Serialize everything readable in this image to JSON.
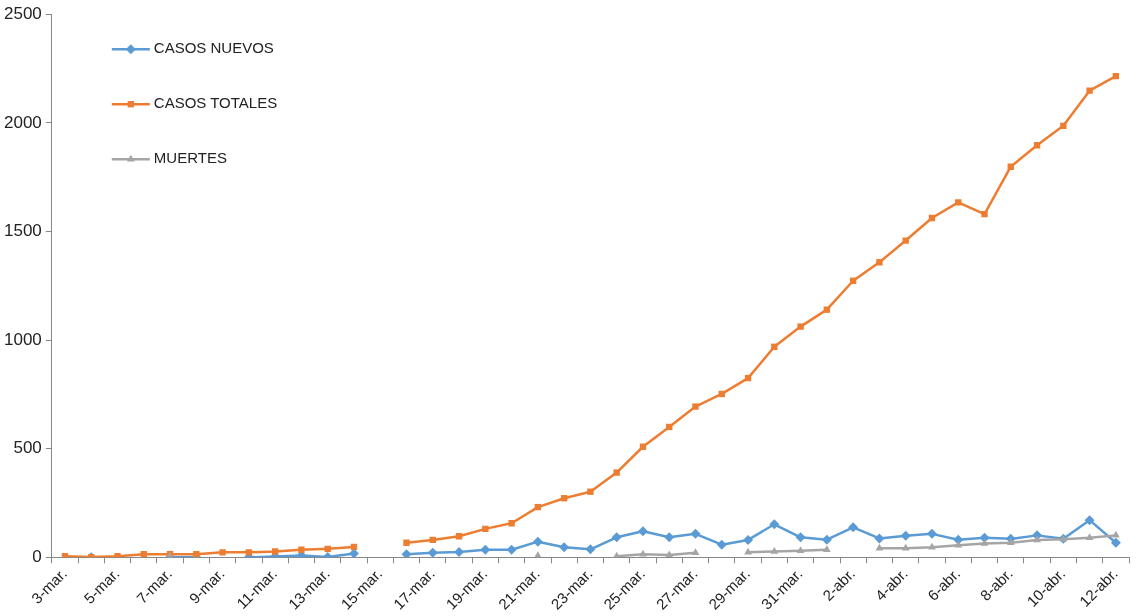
{
  "chart_data": {
    "type": "line",
    "categories": [
      "3-mar.",
      null,
      "5-mar.",
      null,
      "7-mar.",
      null,
      "9-mar.",
      null,
      "11-mar.",
      null,
      "13-mar.",
      null,
      "15-mar.",
      null,
      "17-mar.",
      null,
      "19-mar.",
      null,
      "21-mar.",
      null,
      "23-mar.",
      null,
      "25-mar.",
      null,
      "27-mar.",
      null,
      "29-mar.",
      null,
      "31-mar.",
      null,
      "2-abr.",
      null,
      "4-abr.",
      null,
      "6-abr.",
      null,
      "8-abr.",
      null,
      "10-abr.",
      null,
      "12-abr."
    ],
    "series": [
      {
        "name": "CASOS NUEVOS",
        "color": "#5b9bd5",
        "marker": "diamond",
        "values": [
          null,
          0,
          null,
          null,
          0,
          0,
          null,
          0,
          4,
          8,
          1,
          18,
          null,
          14,
          21,
          25,
          35,
          35,
          72,
          46,
          37,
          92,
          120,
          92,
          108,
          58,
          80,
          152,
          92,
          81,
          138,
          87,
          99,
          108,
          81,
          90,
          85,
          101,
          85,
          171,
          67
        ]
      },
      {
        "name": "CASOS TOTALES",
        "color": "#ed7d31",
        "marker": "square",
        "values": [
          5,
          1,
          5,
          14,
          14,
          14,
          23,
          23,
          27,
          35,
          39,
          48,
          null,
          67,
          80,
          97,
          131,
          157,
          231,
          272,
          302,
          390,
          509,
          600,
          694,
          752,
          825,
          969,
          1062,
          1140,
          1273,
          1358,
          1458,
          1562,
          1634,
          1580,
          1798,
          1897,
          1986,
          2148,
          2215
        ]
      },
      {
        "name": "MUERTES",
        "color": "#a5a5a5",
        "marker": "triangle",
        "values": [
          null,
          null,
          null,
          null,
          5,
          null,
          null,
          null,
          null,
          null,
          null,
          null,
          null,
          null,
          null,
          null,
          null,
          null,
          7,
          null,
          null,
          5,
          14,
          11,
          21,
          null,
          23,
          27,
          30,
          35,
          null,
          42,
          42,
          46,
          55,
          64,
          67,
          80,
          83,
          90,
          101
        ]
      }
    ],
    "ylim": [
      0,
      2500
    ],
    "yticks": [
      0,
      500,
      1000,
      1500,
      2000,
      2500
    ],
    "grid": false,
    "legend": "top left"
  }
}
